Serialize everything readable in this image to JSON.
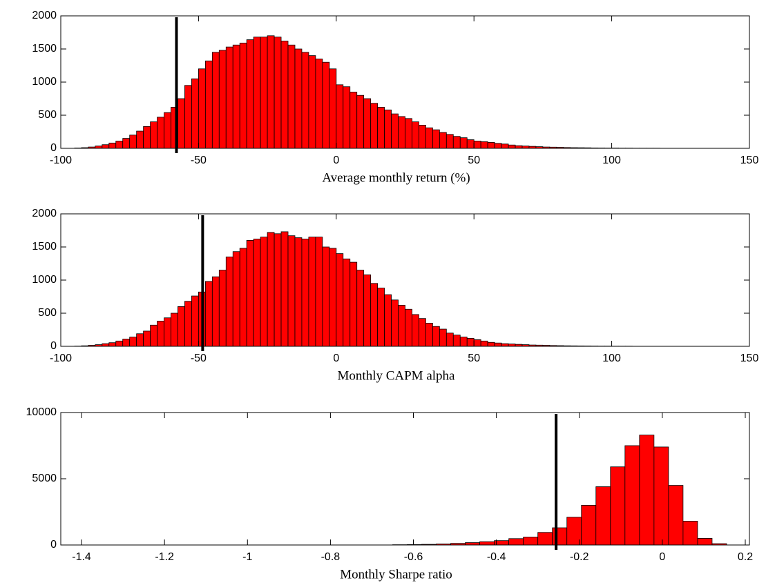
{
  "chart_data": [
    {
      "type": "histogram",
      "xlabel": "Average monthly return (%)",
      "color": "#ff0000",
      "vline": -58,
      "bins": [
        -95,
        -92.5,
        -90,
        -87.5,
        -85,
        -82.5,
        -80,
        -77.5,
        -75,
        -72.5,
        -70,
        -67.5,
        -65,
        -62.5,
        -60,
        -57.5,
        -55,
        -52.5,
        -50,
        -47.5,
        -45,
        -42.5,
        -40,
        -37.5,
        -35,
        -32.5,
        -30,
        -27.5,
        -25,
        -22.5,
        -20,
        -17.5,
        -15,
        -12.5,
        -10,
        -7.5,
        -5,
        -2.5,
        0,
        2.5,
        5,
        7.5,
        10,
        12.5,
        15,
        17.5,
        20,
        22.5,
        25,
        27.5,
        30,
        32.5,
        35,
        37.5,
        40,
        42.5,
        45,
        47.5,
        50,
        52.5,
        55,
        57.5,
        60,
        62.5,
        65,
        67.5,
        70,
        72.5,
        75,
        77.5,
        80,
        82.5,
        85,
        87.5,
        90,
        92.5,
        95,
        97.5,
        100,
        102.5,
        105,
        107.5,
        110,
        112.5,
        115,
        117.5,
        120,
        122.5,
        125,
        127.5,
        130,
        132.5,
        135,
        137.5,
        140,
        142.5,
        145
      ],
      "counts": [
        5,
        10,
        20,
        35,
        55,
        80,
        110,
        150,
        200,
        260,
        330,
        400,
        470,
        540,
        620,
        750,
        950,
        1050,
        1200,
        1320,
        1450,
        1480,
        1530,
        1560,
        1590,
        1640,
        1680,
        1680,
        1700,
        1680,
        1620,
        1560,
        1500,
        1450,
        1400,
        1350,
        1300,
        1200,
        960,
        930,
        850,
        800,
        750,
        680,
        620,
        580,
        520,
        480,
        450,
        400,
        350,
        310,
        280,
        240,
        210,
        180,
        160,
        130,
        110,
        100,
        90,
        75,
        65,
        50,
        40,
        35,
        30,
        25,
        20,
        18,
        15,
        12,
        10,
        9,
        8,
        6,
        5,
        4,
        4,
        3,
        3,
        2,
        2,
        2,
        2,
        1,
        1,
        1,
        1,
        1,
        1,
        1,
        1,
        1,
        1,
        1
      ],
      "xlim": [
        -100,
        150
      ],
      "xticks": [
        -100,
        -50,
        0,
        50,
        100,
        150
      ],
      "ylim": [
        0,
        2000
      ],
      "yticks": [
        0,
        500,
        1000,
        1500,
        2000
      ]
    },
    {
      "type": "histogram",
      "xlabel": "Monthly CAPM alpha",
      "color": "#ff0000",
      "vline": -48.5,
      "bins": [
        -95,
        -92.5,
        -90,
        -87.5,
        -85,
        -82.5,
        -80,
        -77.5,
        -75,
        -72.5,
        -70,
        -67.5,
        -65,
        -62.5,
        -60,
        -57.5,
        -55,
        -52.5,
        -50,
        -47.5,
        -45,
        -42.5,
        -40,
        -37.5,
        -35,
        -32.5,
        -30,
        -27.5,
        -25,
        -22.5,
        -20,
        -17.5,
        -15,
        -12.5,
        -10,
        -7.5,
        -5,
        -2.5,
        0,
        2.5,
        5,
        7.5,
        10,
        12.5,
        15,
        17.5,
        20,
        22.5,
        25,
        27.5,
        30,
        32.5,
        35,
        37.5,
        40,
        42.5,
        45,
        47.5,
        50,
        52.5,
        55,
        57.5,
        60,
        62.5,
        65,
        67.5,
        70,
        72.5,
        75,
        77.5,
        80,
        82.5,
        85,
        87.5,
        90,
        92.5,
        95,
        97.5,
        100,
        102.5,
        105,
        107.5,
        110,
        112.5,
        115,
        117.5,
        120,
        122.5,
        125,
        127.5,
        130,
        132.5,
        135,
        137.5,
        140,
        142.5,
        145
      ],
      "counts": [
        3,
        8,
        15,
        25,
        40,
        55,
        80,
        110,
        140,
        190,
        230,
        320,
        380,
        430,
        500,
        600,
        680,
        760,
        820,
        980,
        1050,
        1150,
        1350,
        1430,
        1480,
        1600,
        1620,
        1650,
        1720,
        1700,
        1730,
        1670,
        1640,
        1620,
        1650,
        1650,
        1500,
        1480,
        1400,
        1320,
        1270,
        1150,
        1080,
        950,
        880,
        780,
        700,
        620,
        560,
        480,
        420,
        350,
        300,
        260,
        200,
        170,
        140,
        120,
        100,
        80,
        60,
        50,
        40,
        35,
        30,
        25,
        20,
        18,
        15,
        12,
        10,
        8,
        7,
        6,
        5,
        4,
        3,
        3,
        2,
        2,
        2,
        1,
        1,
        1,
        1,
        1,
        1,
        1,
        1,
        1,
        1,
        1,
        1,
        1,
        1,
        1
      ],
      "xlim": [
        -100,
        150
      ],
      "xticks": [
        -100,
        -50,
        0,
        50,
        100,
        150
      ],
      "ylim": [
        0,
        2000
      ],
      "yticks": [
        0,
        500,
        1000,
        1500,
        2000
      ]
    },
    {
      "type": "histogram",
      "xlabel": "Monthly Sharpe ratio",
      "color": "#ff0000",
      "vline": -0.256,
      "bins": [
        -0.65,
        -0.615,
        -0.58,
        -0.545,
        -0.51,
        -0.475,
        -0.44,
        -0.405,
        -0.37,
        -0.335,
        -0.3,
        -0.265,
        -0.23,
        -0.195,
        -0.16,
        -0.125,
        -0.09,
        -0.055,
        -0.02,
        0.015,
        0.05,
        0.085,
        0.12,
        0.155
      ],
      "counts": [
        20,
        30,
        50,
        80,
        120,
        180,
        250,
        330,
        480,
        600,
        950,
        1300,
        2100,
        3000,
        4400,
        5900,
        7500,
        8300,
        7400,
        4500,
        1800,
        500,
        100
      ],
      "xlim": [
        -1.45,
        0.21
      ],
      "xticks": [
        -1.4,
        -1.2,
        -1,
        -0.8,
        -0.6,
        -0.4,
        -0.2,
        0,
        0.2
      ],
      "ylim": [
        0,
        10000
      ],
      "yticks": [
        0,
        5000,
        10000
      ]
    }
  ]
}
